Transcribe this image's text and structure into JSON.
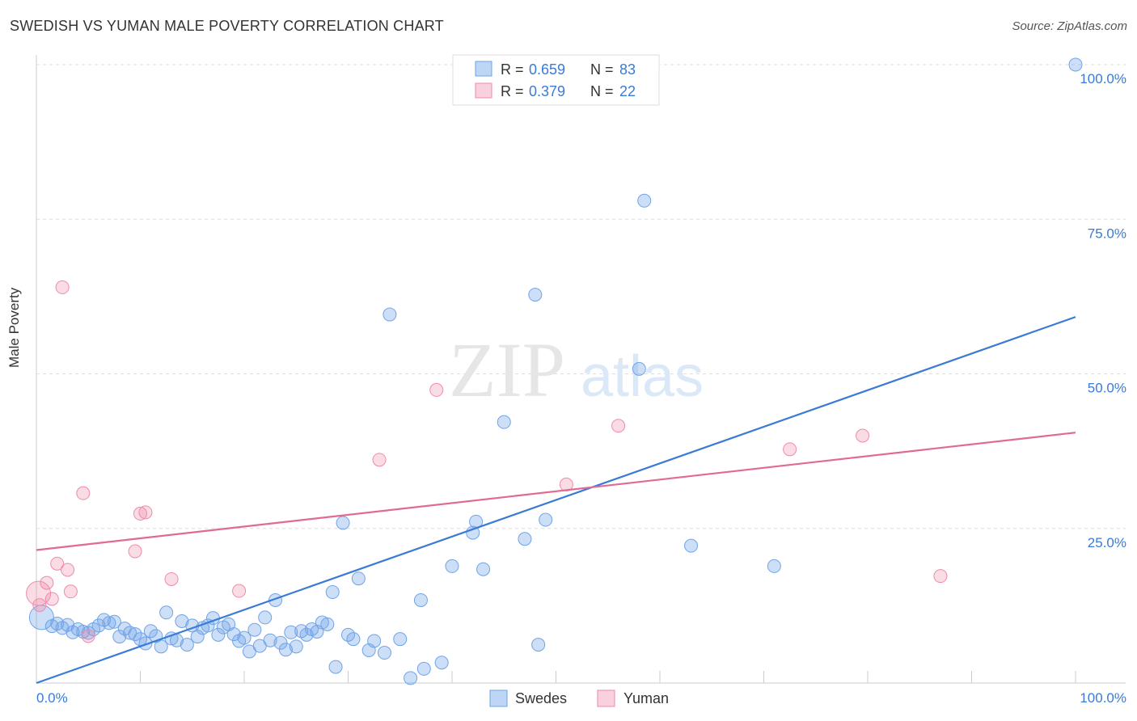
{
  "header": {
    "title": "SWEDISH VS YUMAN MALE POVERTY CORRELATION CHART",
    "source": "Source: ZipAtlas.com"
  },
  "watermark": {
    "zip": "ZIP",
    "atlas": "atlas"
  },
  "stats_legend": [
    {
      "r_label": "R = ",
      "r_value": "0.659",
      "n_label": "N = ",
      "n_value": "83",
      "color": "#6fa3e8"
    },
    {
      "r_label": "R = ",
      "r_value": "0.379",
      "n_label": "N = ",
      "n_value": "22",
      "color": "#f08aaa"
    }
  ],
  "chart_data": {
    "type": "scatter",
    "title": "SWEDISH VS YUMAN MALE POVERTY CORRELATION CHART",
    "xlabel": "",
    "ylabel": "Male Poverty",
    "xlim": [
      0,
      100
    ],
    "ylim": [
      0,
      100
    ],
    "x_tick_labels": [
      "0.0%",
      "100.0%"
    ],
    "y_tick_labels": [
      "100.0%",
      "75.0%",
      "50.0%",
      "25.0%"
    ],
    "y_ticks": [
      100,
      75,
      50,
      25
    ],
    "grid": true,
    "legend_position": "bottom-center",
    "colors": {
      "swedes": "#3a7bd5",
      "yuman": "#e06a92"
    },
    "series": [
      {
        "name": "Swedes",
        "trendline": {
          "x": [
            0,
            100
          ],
          "y": [
            0.0,
            59.2
          ]
        },
        "points": [
          {
            "x": 0.5,
            "y": 10.6
          },
          {
            "x": 1.5,
            "y": 9.2
          },
          {
            "x": 2,
            "y": 9.6
          },
          {
            "x": 2.5,
            "y": 8.9
          },
          {
            "x": 3,
            "y": 9.4
          },
          {
            "x": 3.5,
            "y": 8.2
          },
          {
            "x": 4,
            "y": 8.7
          },
          {
            "x": 4.5,
            "y": 8.3
          },
          {
            "x": 5,
            "y": 8.1
          },
          {
            "x": 5.5,
            "y": 8.7
          },
          {
            "x": 6,
            "y": 9.3
          },
          {
            "x": 6.5,
            "y": 10.2
          },
          {
            "x": 7,
            "y": 9.7
          },
          {
            "x": 7.5,
            "y": 9.9
          },
          {
            "x": 8,
            "y": 7.5
          },
          {
            "x": 8.5,
            "y": 8.8
          },
          {
            "x": 9,
            "y": 8.1
          },
          {
            "x": 9.5,
            "y": 7.9
          },
          {
            "x": 10,
            "y": 7.1
          },
          {
            "x": 10.5,
            "y": 6.4
          },
          {
            "x": 11,
            "y": 8.4
          },
          {
            "x": 11.5,
            "y": 7.6
          },
          {
            "x": 12,
            "y": 5.9
          },
          {
            "x": 12.5,
            "y": 11.4
          },
          {
            "x": 13,
            "y": 7.2
          },
          {
            "x": 13.5,
            "y": 6.9
          },
          {
            "x": 14,
            "y": 10.0
          },
          {
            "x": 14.5,
            "y": 6.2
          },
          {
            "x": 15,
            "y": 9.3
          },
          {
            "x": 15.5,
            "y": 7.5
          },
          {
            "x": 16,
            "y": 8.9
          },
          {
            "x": 16.5,
            "y": 9.3
          },
          {
            "x": 17,
            "y": 10.5
          },
          {
            "x": 17.5,
            "y": 7.8
          },
          {
            "x": 18,
            "y": 9.0
          },
          {
            "x": 18.5,
            "y": 9.5
          },
          {
            "x": 19,
            "y": 7.9
          },
          {
            "x": 19.5,
            "y": 6.8
          },
          {
            "x": 20,
            "y": 7.3
          },
          {
            "x": 20.5,
            "y": 5.1
          },
          {
            "x": 21,
            "y": 8.6
          },
          {
            "x": 21.5,
            "y": 6.0
          },
          {
            "x": 22,
            "y": 10.6
          },
          {
            "x": 22.5,
            "y": 6.9
          },
          {
            "x": 23,
            "y": 13.4
          },
          {
            "x": 23.5,
            "y": 6.5
          },
          {
            "x": 24,
            "y": 5.4
          },
          {
            "x": 24.5,
            "y": 8.2
          },
          {
            "x": 25,
            "y": 5.9
          },
          {
            "x": 25.5,
            "y": 8.4
          },
          {
            "x": 26,
            "y": 7.8
          },
          {
            "x": 26.5,
            "y": 8.7
          },
          {
            "x": 27,
            "y": 8.3
          },
          {
            "x": 27.5,
            "y": 9.8
          },
          {
            "x": 28,
            "y": 9.5
          },
          {
            "x": 28.5,
            "y": 14.7
          },
          {
            "x": 28.8,
            "y": 2.6
          },
          {
            "x": 29.5,
            "y": 25.9
          },
          {
            "x": 30,
            "y": 7.8
          },
          {
            "x": 30.5,
            "y": 7.1
          },
          {
            "x": 31,
            "y": 16.9
          },
          {
            "x": 32,
            "y": 5.3
          },
          {
            "x": 32.5,
            "y": 6.8
          },
          {
            "x": 33.5,
            "y": 4.9
          },
          {
            "x": 34,
            "y": 59.6
          },
          {
            "x": 35,
            "y": 7.1
          },
          {
            "x": 36,
            "y": 0.8
          },
          {
            "x": 37,
            "y": 13.4
          },
          {
            "x": 37.3,
            "y": 2.3
          },
          {
            "x": 39,
            "y": 3.3
          },
          {
            "x": 40,
            "y": 18.9
          },
          {
            "x": 42,
            "y": 24.3
          },
          {
            "x": 42.3,
            "y": 26.1
          },
          {
            "x": 43,
            "y": 18.4
          },
          {
            "x": 45,
            "y": 42.2
          },
          {
            "x": 47,
            "y": 23.3
          },
          {
            "x": 48,
            "y": 62.8
          },
          {
            "x": 48.3,
            "y": 6.2
          },
          {
            "x": 49,
            "y": 26.4
          },
          {
            "x": 58,
            "y": 50.8
          },
          {
            "x": 58.5,
            "y": 78.0
          },
          {
            "x": 63,
            "y": 22.2
          },
          {
            "x": 71,
            "y": 18.9
          },
          {
            "x": 100,
            "y": 100.0
          }
        ]
      },
      {
        "name": "Yuman",
        "trendline": {
          "x": [
            0,
            100
          ],
          "y": [
            21.5,
            40.5
          ]
        },
        "points": [
          {
            "x": 0.3,
            "y": 12.6
          },
          {
            "x": 1,
            "y": 16.2
          },
          {
            "x": 1.5,
            "y": 13.6
          },
          {
            "x": 2,
            "y": 19.3
          },
          {
            "x": 2.5,
            "y": 64.0
          },
          {
            "x": 3,
            "y": 18.3
          },
          {
            "x": 3.3,
            "y": 14.8
          },
          {
            "x": 4.5,
            "y": 30.7
          },
          {
            "x": 5,
            "y": 7.6
          },
          {
            "x": 9.5,
            "y": 21.3
          },
          {
            "x": 10,
            "y": 27.4
          },
          {
            "x": 10.5,
            "y": 27.6
          },
          {
            "x": 13,
            "y": 16.8
          },
          {
            "x": 19.5,
            "y": 14.9
          },
          {
            "x": 33,
            "y": 36.1
          },
          {
            "x": 38.5,
            "y": 47.4
          },
          {
            "x": 51,
            "y": 32.1
          },
          {
            "x": 56,
            "y": 41.6
          },
          {
            "x": 72.5,
            "y": 37.8
          },
          {
            "x": 79.5,
            "y": 40.0
          },
          {
            "x": 87,
            "y": 17.3
          },
          {
            "x": 0.2,
            "y": 14.5
          }
        ]
      }
    ]
  },
  "bottom_legend": [
    {
      "label": "Swedes",
      "color": "#6fa3e8"
    },
    {
      "label": "Yuman",
      "color": "#f08aaa"
    }
  ]
}
